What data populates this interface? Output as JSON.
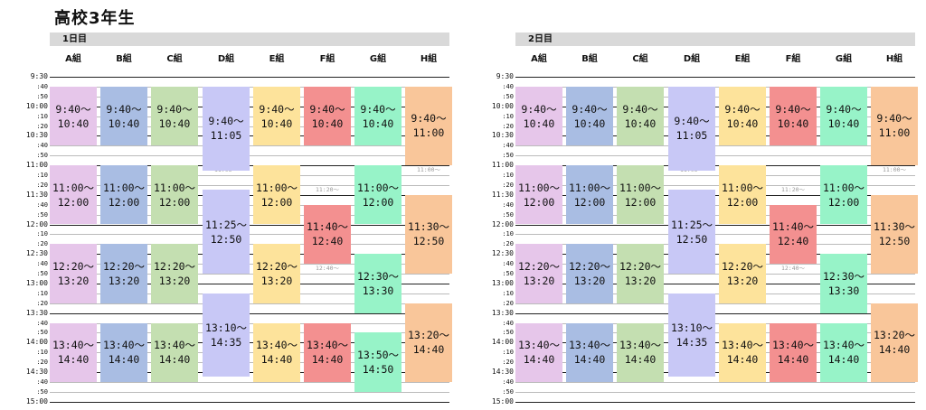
{
  "title": "高校3年生",
  "classes": [
    "A組",
    "B組",
    "C組",
    "D組",
    "E組",
    "F組",
    "G組",
    "H組"
  ],
  "class_colors": [
    "#e6c6ea",
    "#a9bde3",
    "#c4dfb1",
    "#c8c8f6",
    "#fde39b",
    "#f39090",
    "#97f3c8",
    "#f9c69a"
  ],
  "time_labels": [
    "9:30",
    ":40",
    ":50",
    "10:00",
    ":10",
    ":20",
    "10:30",
    ":40",
    ":50",
    "11:00",
    ":10",
    ":20",
    "11:30",
    ":40",
    ":50",
    "12:00",
    ":10",
    ":20",
    "12:30",
    ":40",
    ":50",
    "13:00",
    ":10",
    ":20",
    "13:30",
    ":40",
    ":50",
    "14:00",
    ":10",
    ":20",
    "14:30",
    ":40",
    ":50",
    "15:00"
  ],
  "days": [
    {
      "label": "1日目",
      "blocks": [
        {
          "col": 0,
          "start": "9:40",
          "end": "10:40",
          "line1": "9:40〜",
          "line2": "10:40"
        },
        {
          "col": 1,
          "start": "9:40",
          "end": "10:40",
          "line1": "9:40〜",
          "line2": "10:40"
        },
        {
          "col": 2,
          "start": "9:40",
          "end": "10:40",
          "line1": "9:40〜",
          "line2": "10:40"
        },
        {
          "col": 3,
          "start": "9:40",
          "end": "11:05",
          "line1": "9:40〜",
          "line2": "11:05"
        },
        {
          "col": 4,
          "start": "9:40",
          "end": "10:40",
          "line1": "9:40〜",
          "line2": "10:40"
        },
        {
          "col": 5,
          "start": "9:40",
          "end": "10:40",
          "line1": "9:40〜",
          "line2": "10:40"
        },
        {
          "col": 6,
          "start": "9:40",
          "end": "10:40",
          "line1": "9:40〜",
          "line2": "10:40"
        },
        {
          "col": 7,
          "start": "9:40",
          "end": "11:00",
          "line1": "9:40〜",
          "line2": "11:00"
        },
        {
          "col": 0,
          "start": "11:00",
          "end": "12:00",
          "line1": "11:00〜",
          "line2": "12:00"
        },
        {
          "col": 1,
          "start": "11:00",
          "end": "12:00",
          "line1": "11:00〜",
          "line2": "12:00"
        },
        {
          "col": 2,
          "start": "11:00",
          "end": "12:00",
          "line1": "11:00〜",
          "line2": "12:00"
        },
        {
          "col": 3,
          "start": "11:25",
          "end": "12:50",
          "line1": "11:25〜",
          "line2": "12:50"
        },
        {
          "col": 4,
          "start": "11:00",
          "end": "12:00",
          "line1": "11:00〜",
          "line2": "12:00"
        },
        {
          "col": 5,
          "start": "11:40",
          "end": "12:40",
          "line1": "11:40〜",
          "line2": "12:40"
        },
        {
          "col": 6,
          "start": "11:00",
          "end": "12:00",
          "line1": "11:00〜",
          "line2": "12:00"
        },
        {
          "col": 7,
          "start": "11:30",
          "end": "12:50",
          "line1": "11:30〜",
          "line2": "12:50"
        },
        {
          "col": 0,
          "start": "12:20",
          "end": "13:20",
          "line1": "12:20〜",
          "line2": "13:20"
        },
        {
          "col": 1,
          "start": "12:20",
          "end": "13:20",
          "line1": "12:20〜",
          "line2": "13:20"
        },
        {
          "col": 2,
          "start": "12:20",
          "end": "13:20",
          "line1": "12:20〜",
          "line2": "13:20"
        },
        {
          "col": 3,
          "start": "13:10",
          "end": "14:35",
          "line1": "13:10〜",
          "line2": "14:35"
        },
        {
          "col": 4,
          "start": "12:20",
          "end": "13:20",
          "line1": "12:20〜",
          "line2": "13:20"
        },
        {
          "col": 6,
          "start": "12:30",
          "end": "13:30",
          "line1": "12:30〜",
          "line2": "13:30"
        },
        {
          "col": 7,
          "start": "13:20",
          "end": "14:40",
          "line1": "13:20〜",
          "line2": "14:40"
        },
        {
          "col": 0,
          "start": "13:40",
          "end": "14:40",
          "line1": "13:40〜",
          "line2": "14:40"
        },
        {
          "col": 1,
          "start": "13:40",
          "end": "14:40",
          "line1": "13:40〜",
          "line2": "14:40"
        },
        {
          "col": 2,
          "start": "13:40",
          "end": "14:40",
          "line1": "13:40〜",
          "line2": "14:40"
        },
        {
          "col": 4,
          "start": "13:40",
          "end": "14:40",
          "line1": "13:40〜",
          "line2": "14:40"
        },
        {
          "col": 5,
          "start": "13:40",
          "end": "14:40",
          "line1": "13:40〜",
          "line2": "14:40"
        },
        {
          "col": 6,
          "start": "13:50",
          "end": "14:50",
          "line1": "13:50〜",
          "line2": "14:50"
        }
      ],
      "faint": [
        {
          "col": 3,
          "time": "11:00",
          "text": "11:05〜"
        },
        {
          "col": 5,
          "time": "11:20",
          "text": "11:20〜"
        },
        {
          "col": 5,
          "time": "12:40",
          "text": "12:40〜"
        },
        {
          "col": 7,
          "time": "11:00",
          "text": "11:00〜"
        }
      ]
    },
    {
      "label": "2日目",
      "blocks": [
        {
          "col": 0,
          "start": "9:40",
          "end": "10:40",
          "line1": "9:40〜",
          "line2": "10:40"
        },
        {
          "col": 1,
          "start": "9:40",
          "end": "10:40",
          "line1": "9:40〜",
          "line2": "10:40"
        },
        {
          "col": 2,
          "start": "9:40",
          "end": "10:40",
          "line1": "9:40〜",
          "line2": "10:40"
        },
        {
          "col": 3,
          "start": "9:40",
          "end": "11:05",
          "line1": "9:40〜",
          "line2": "11:05"
        },
        {
          "col": 4,
          "start": "9:40",
          "end": "10:40",
          "line1": "9:40〜",
          "line2": "10:40"
        },
        {
          "col": 5,
          "start": "9:40",
          "end": "10:40",
          "line1": "9:40〜",
          "line2": "10:40"
        },
        {
          "col": 6,
          "start": "9:40",
          "end": "10:40",
          "line1": "9:40〜",
          "line2": "10:40"
        },
        {
          "col": 7,
          "start": "9:40",
          "end": "11:00",
          "line1": "9:40〜",
          "line2": "11:00"
        },
        {
          "col": 0,
          "start": "11:00",
          "end": "12:00",
          "line1": "11:00〜",
          "line2": "12:00"
        },
        {
          "col": 1,
          "start": "11:00",
          "end": "12:00",
          "line1": "11:00〜",
          "line2": "12:00"
        },
        {
          "col": 2,
          "start": "11:00",
          "end": "12:00",
          "line1": "11:00〜",
          "line2": "12:00"
        },
        {
          "col": 3,
          "start": "11:25",
          "end": "12:50",
          "line1": "11:25〜",
          "line2": "12:50"
        },
        {
          "col": 4,
          "start": "11:00",
          "end": "12:00",
          "line1": "11:00〜",
          "line2": "12:00"
        },
        {
          "col": 5,
          "start": "11:40",
          "end": "12:40",
          "line1": "11:40〜",
          "line2": "12:40"
        },
        {
          "col": 6,
          "start": "11:00",
          "end": "12:00",
          "line1": "11:00〜",
          "line2": "12:00"
        },
        {
          "col": 7,
          "start": "11:30",
          "end": "12:50",
          "line1": "11:30〜",
          "line2": "12:50"
        },
        {
          "col": 0,
          "start": "12:20",
          "end": "13:20",
          "line1": "12:20〜",
          "line2": "13:20"
        },
        {
          "col": 1,
          "start": "12:20",
          "end": "13:20",
          "line1": "12:20〜",
          "line2": "13:20"
        },
        {
          "col": 2,
          "start": "12:20",
          "end": "13:20",
          "line1": "12:20〜",
          "line2": "13:20"
        },
        {
          "col": 3,
          "start": "13:10",
          "end": "14:35",
          "line1": "13:10〜",
          "line2": "14:35"
        },
        {
          "col": 4,
          "start": "12:20",
          "end": "13:20",
          "line1": "12:20〜",
          "line2": "13:20"
        },
        {
          "col": 6,
          "start": "12:30",
          "end": "13:30",
          "line1": "12:30〜",
          "line2": "13:30"
        },
        {
          "col": 7,
          "start": "13:20",
          "end": "14:40",
          "line1": "13:20〜",
          "line2": "14:40"
        },
        {
          "col": 0,
          "start": "13:40",
          "end": "14:40",
          "line1": "13:40〜",
          "line2": "14:40"
        },
        {
          "col": 1,
          "start": "13:40",
          "end": "14:40",
          "line1": "13:40〜",
          "line2": "14:40"
        },
        {
          "col": 2,
          "start": "13:40",
          "end": "14:40",
          "line1": "13:40〜",
          "line2": "14:40"
        },
        {
          "col": 4,
          "start": "13:40",
          "end": "14:40",
          "line1": "13:40〜",
          "line2": "14:40"
        },
        {
          "col": 5,
          "start": "13:40",
          "end": "14:40",
          "line1": "13:40〜",
          "line2": "14:40"
        },
        {
          "col": 6,
          "start": "13:40",
          "end": "14:40",
          "line1": "13:40〜",
          "line2": "14:40"
        }
      ],
      "faint": [
        {
          "col": 3,
          "time": "11:00",
          "text": "11:05〜"
        },
        {
          "col": 5,
          "time": "11:20",
          "text": "11:20〜"
        },
        {
          "col": 5,
          "time": "12:40",
          "text": "12:40〜"
        },
        {
          "col": 7,
          "time": "11:00",
          "text": "11:00〜"
        }
      ]
    }
  ]
}
